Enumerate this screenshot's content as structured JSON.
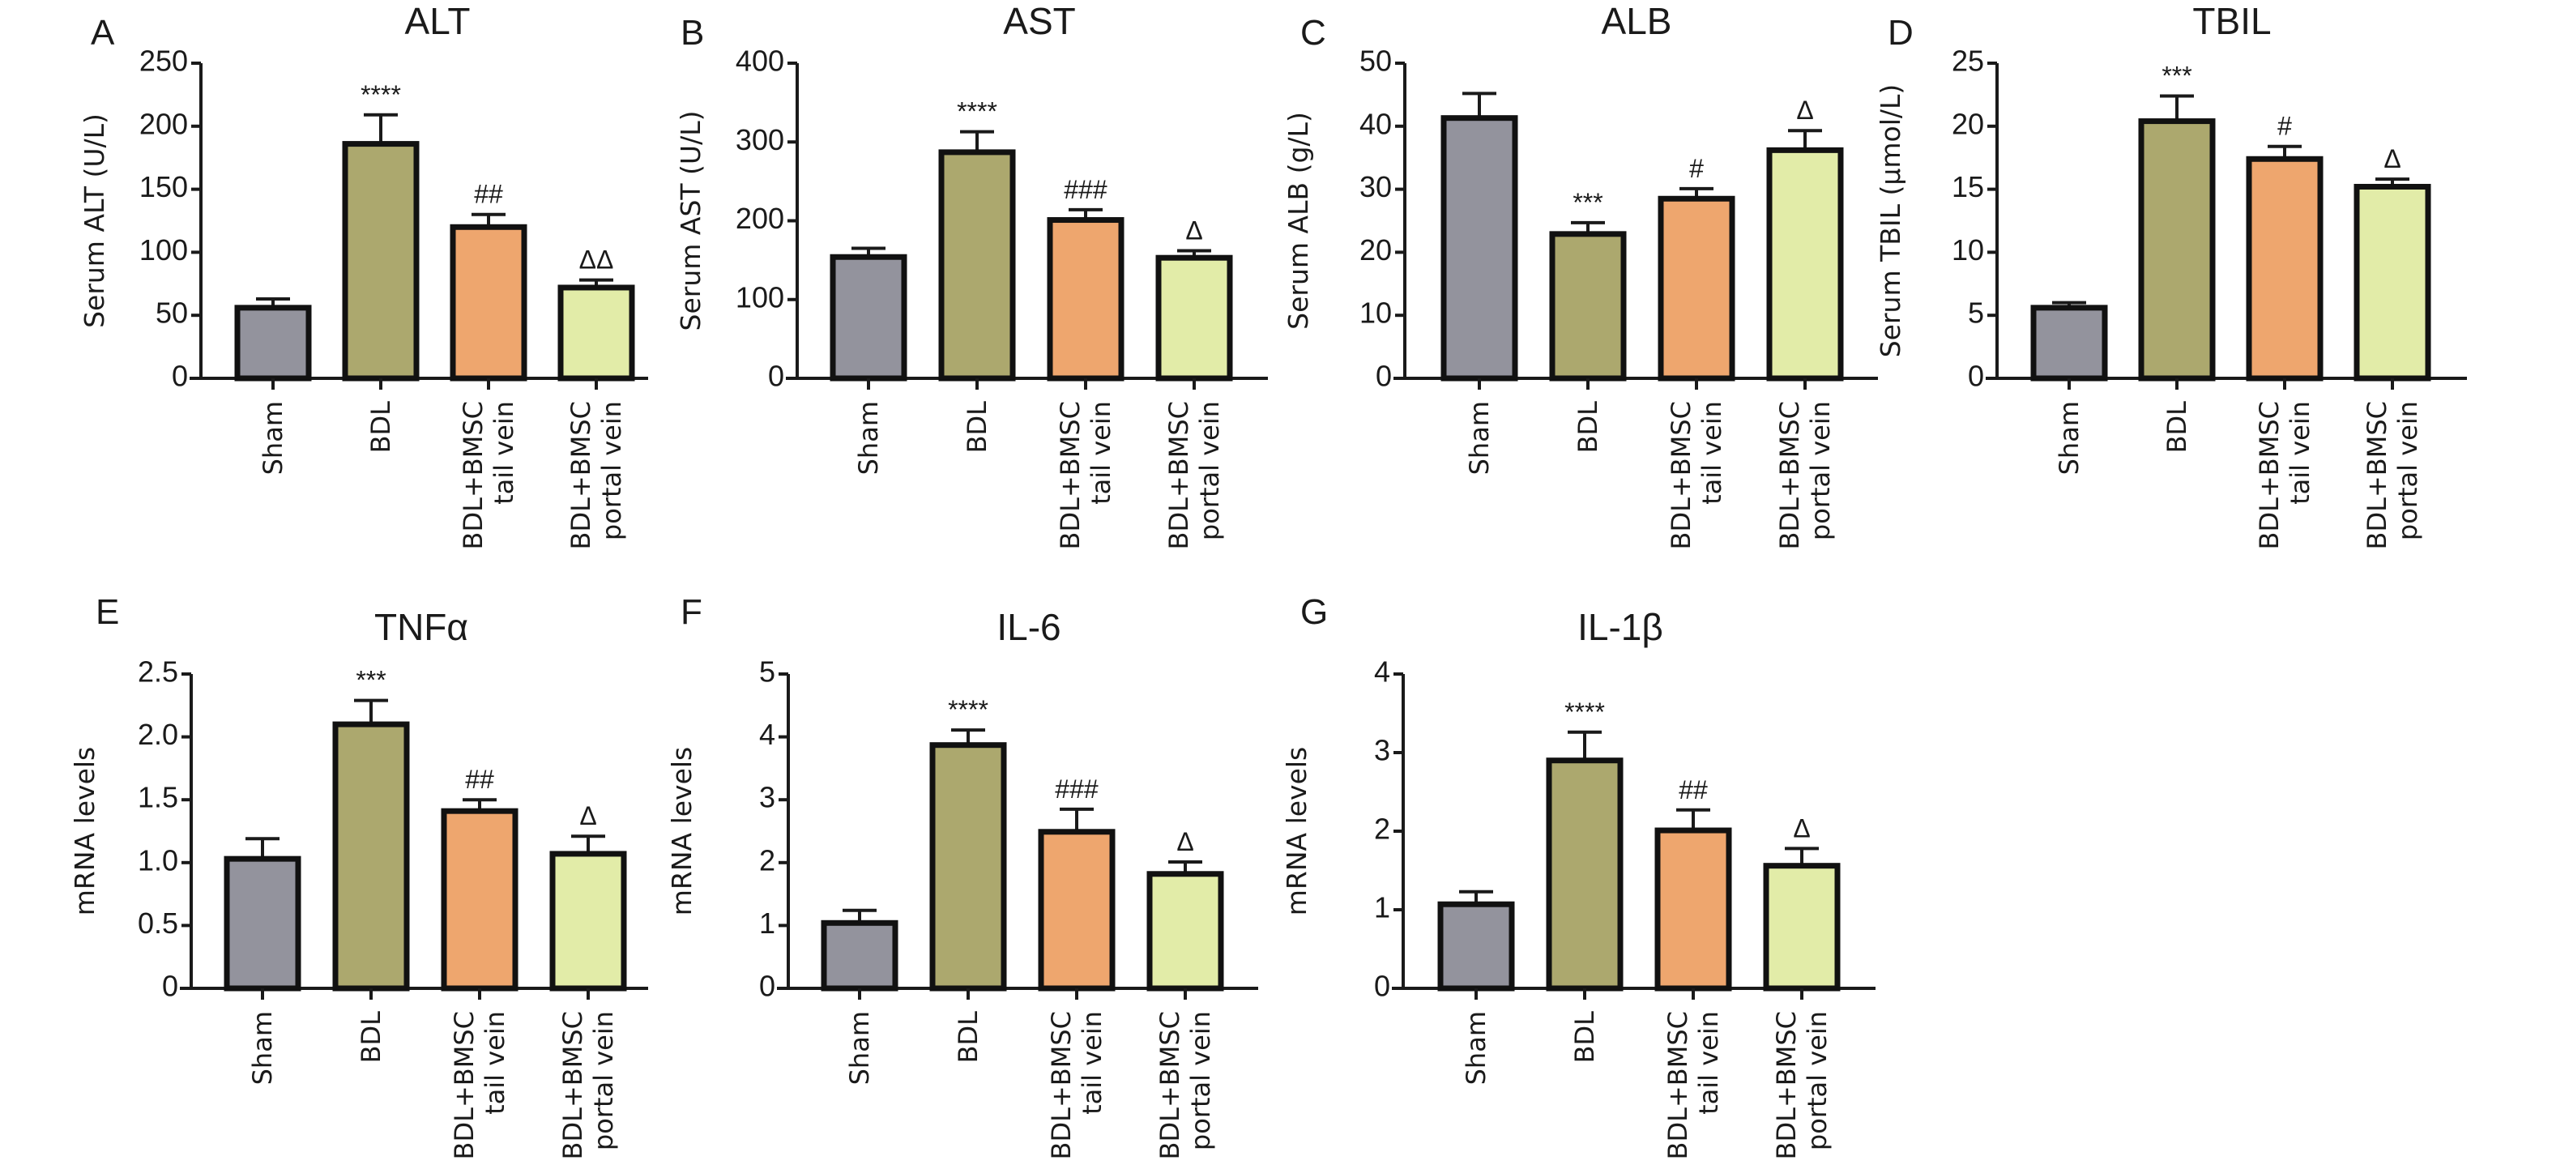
{
  "groups": [
    "Sham",
    "BDL",
    "BDL+BMSC tail vein",
    "BDL+BMSC portal vein"
  ],
  "group_label_lines": [
    [
      "Sham"
    ],
    [
      "BDL"
    ],
    [
      "BDL+BMSC",
      "tail vein"
    ],
    [
      "BDL+BMSC",
      "portal vein"
    ]
  ],
  "group_colors": [
    "#93939d",
    "#aca86e",
    "#eea66e",
    "#e2eca8"
  ],
  "chart_data": [
    {
      "panel": "A",
      "type": "bar",
      "title": "ALT",
      "ylabel": "Serum ALT (U/L)",
      "xlabel": "",
      "ylim": [
        0,
        250
      ],
      "yticks": [
        0,
        50,
        100,
        150,
        200,
        250
      ],
      "grid": false,
      "categories": [
        "Sham",
        "BDL",
        "BDL+BMSC tail vein",
        "BDL+BMSC portal vein"
      ],
      "values": [
        56,
        186,
        120,
        72
      ],
      "error_upper": [
        63,
        209,
        130,
        78
      ],
      "annotations": [
        "",
        "****",
        "##",
        "ΔΔ"
      ]
    },
    {
      "panel": "B",
      "type": "bar",
      "title": "AST",
      "ylabel": "Serum AST (U/L)",
      "xlabel": "",
      "ylim": [
        0,
        400
      ],
      "yticks": [
        0,
        100,
        200,
        300,
        400
      ],
      "grid": false,
      "categories": [
        "Sham",
        "BDL",
        "BDL+BMSC tail vein",
        "BDL+BMSC portal vein"
      ],
      "values": [
        154,
        287,
        201,
        153
      ],
      "error_upper": [
        165,
        313,
        214,
        162
      ],
      "annotations": [
        "",
        "****",
        "###",
        "Δ"
      ]
    },
    {
      "panel": "C",
      "type": "bar",
      "title": "ALB",
      "ylabel": "Serum ALB (g/L)",
      "xlabel": "",
      "ylim": [
        0,
        50
      ],
      "yticks": [
        0,
        10,
        20,
        30,
        40,
        50
      ],
      "grid": false,
      "categories": [
        "Sham",
        "BDL",
        "BDL+BMSC tail vein",
        "BDL+BMSC portal vein"
      ],
      "values": [
        41.3,
        22.9,
        28.5,
        36.2
      ],
      "error_upper": [
        45.2,
        24.7,
        30.1,
        39.3
      ],
      "annotations": [
        "",
        "***",
        "#",
        "Δ"
      ]
    },
    {
      "panel": "D",
      "type": "bar",
      "title": "TBIL",
      "ylabel": "Serum TBIL (μmol/L)",
      "xlabel": "",
      "ylim": [
        0,
        25
      ],
      "yticks": [
        0,
        5,
        10,
        15,
        20,
        25
      ],
      "grid": false,
      "categories": [
        "Sham",
        "BDL",
        "BDL+BMSC tail vein",
        "BDL+BMSC portal vein"
      ],
      "values": [
        5.6,
        20.4,
        17.4,
        15.2
      ],
      "error_upper": [
        6.0,
        22.4,
        18.4,
        15.8
      ],
      "annotations": [
        "",
        "***",
        "#",
        "Δ"
      ]
    },
    {
      "panel": "E",
      "type": "bar",
      "title": "TNFα",
      "ylabel": "mRNA levels",
      "xlabel": "",
      "ylim": [
        0,
        2.5
      ],
      "yticks": [
        0,
        0.5,
        1.0,
        1.5,
        2.0,
        2.5
      ],
      "ytick_labels": [
        "0",
        "0.5",
        "1.0",
        "1.5",
        "2.0",
        "2.5"
      ],
      "grid": false,
      "categories": [
        "Sham",
        "BDL",
        "BDL+BMSC tail vein",
        "BDL+BMSC portal vein"
      ],
      "values": [
        1.03,
        2.1,
        1.41,
        1.07
      ],
      "error_upper": [
        1.19,
        2.29,
        1.5,
        1.21
      ],
      "annotations": [
        "",
        "***",
        "##",
        "Δ"
      ]
    },
    {
      "panel": "F",
      "type": "bar",
      "title": "IL-6",
      "ylabel": "mRNA levels",
      "xlabel": "",
      "ylim": [
        0,
        5
      ],
      "yticks": [
        0,
        1,
        2,
        3,
        4,
        5
      ],
      "grid": false,
      "categories": [
        "Sham",
        "BDL",
        "BDL+BMSC tail vein",
        "BDL+BMSC portal vein"
      ],
      "values": [
        1.04,
        3.87,
        2.49,
        1.82
      ],
      "error_upper": [
        1.24,
        4.11,
        2.85,
        2.01
      ],
      "annotations": [
        "",
        "****",
        "###",
        "Δ"
      ]
    },
    {
      "panel": "G",
      "type": "bar",
      "title": "IL-1β",
      "ylabel": "mRNA levels",
      "xlabel": "",
      "ylim": [
        0,
        4
      ],
      "yticks": [
        0,
        1,
        2,
        3,
        4
      ],
      "grid": false,
      "categories": [
        "Sham",
        "BDL",
        "BDL+BMSC tail vein",
        "BDL+BMSC portal vein"
      ],
      "values": [
        1.07,
        2.9,
        2.01,
        1.56
      ],
      "error_upper": [
        1.23,
        3.26,
        2.27,
        1.78
      ],
      "annotations": [
        "",
        "****",
        "##",
        "Δ"
      ]
    }
  ]
}
